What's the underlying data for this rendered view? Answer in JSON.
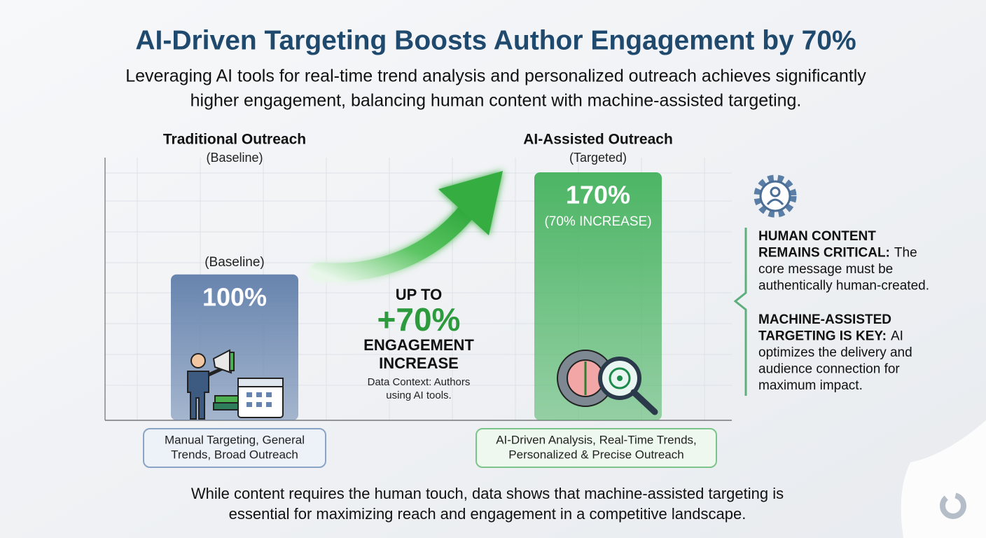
{
  "chart_data": {
    "type": "bar",
    "title": "AI-Driven Targeting Boosts Author Engagement by 70%",
    "subtitle": [
      "Leveraging AI tools for real-time trend analysis and personalized outreach achieves significantly",
      "higher engagement, balancing human content with machine-assisted targeting."
    ],
    "categories": [
      "Traditional Outreach",
      "AI-Assisted Outreach"
    ],
    "category_subtitles": [
      "(Baseline)",
      "(Targeted)"
    ],
    "values": [
      100,
      170
    ],
    "value_labels": [
      "100%",
      "170%"
    ],
    "bar_notes": [
      "(Baseline)",
      "(70% INCREASE)"
    ],
    "colors": [
      "#6784ae",
      "#4cb564"
    ],
    "descriptions": [
      [
        "Manual Targeting, General",
        "Trends, Broad Outreach"
      ],
      [
        "AI-Driven Analysis, Real-Time Trends,",
        "Personalized & Precise Outreach"
      ]
    ],
    "callout": {
      "lead": "UP TO",
      "figure": "+70%",
      "caption": [
        "ENGAGEMENT",
        "INCREASE"
      ],
      "context": [
        "Data Context: Authors",
        "using AI tools."
      ]
    },
    "notes": [
      {
        "heading": [
          "HUMAN CONTENT",
          "REMAINS CRITICAL:"
        ],
        "body": [
          "The",
          "core message must be",
          "authentically human-created."
        ]
      },
      {
        "heading": [
          "MACHINE-ASSISTED",
          "TARGETING IS KEY:"
        ],
        "body": [
          "AI",
          "optimizes the delivery and",
          "audience connection for",
          "maximum impact."
        ]
      }
    ],
    "footer": [
      "While content requires the human touch, data shows that machine-assisted targeting is",
      "essential for maximizing reach and engagement in a competitive landscape."
    ]
  }
}
